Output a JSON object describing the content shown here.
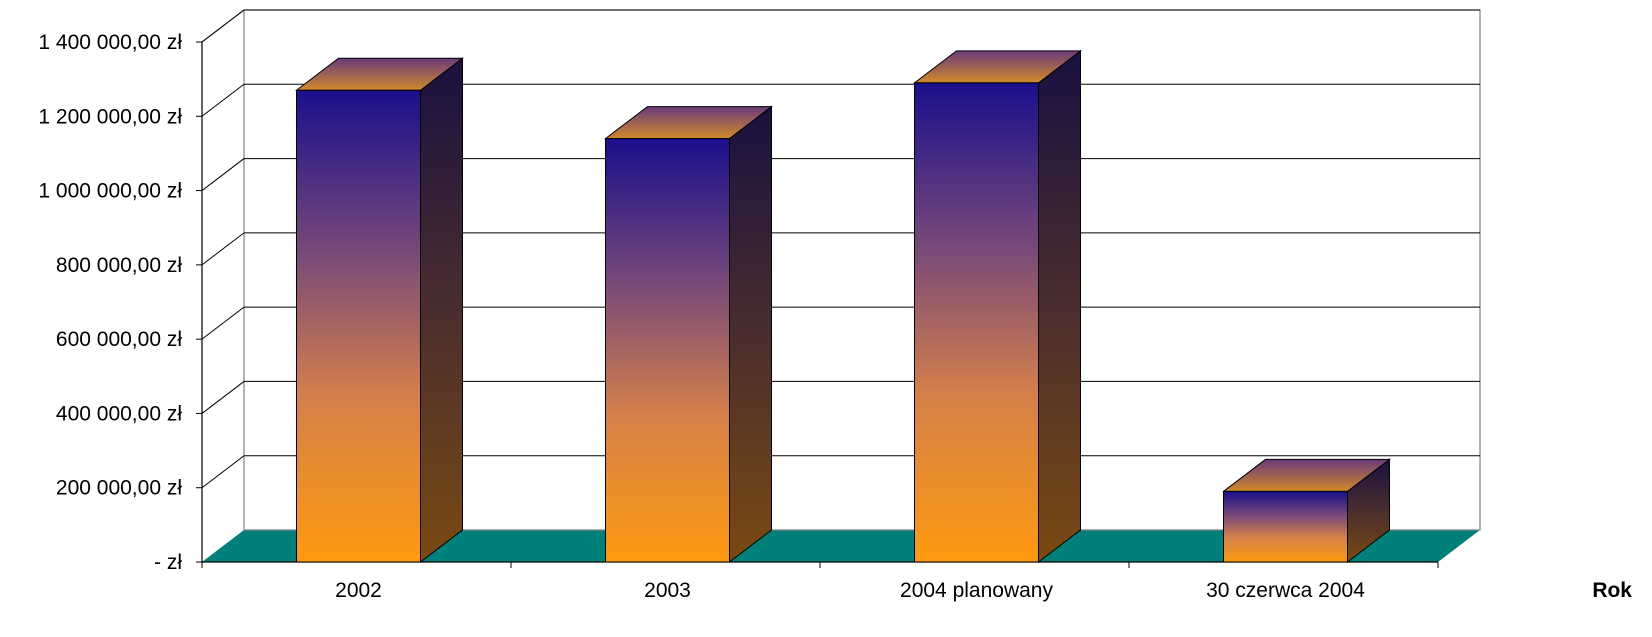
{
  "chart_data": {
    "type": "bar",
    "style": "3d-column",
    "categories": [
      "2002",
      "2003",
      "2004 planowany",
      "30 czerwca 2004"
    ],
    "values": [
      1270000,
      1140000,
      1290000,
      190000
    ],
    "ylim": [
      0,
      1400000
    ],
    "ytick_values": [
      0,
      200000,
      400000,
      600000,
      800000,
      1000000,
      1200000,
      1400000
    ],
    "ytick_labels": [
      "-    zł",
      "200 000,00 zł",
      "400 000,00 zł",
      "600 000,00 zł",
      "800 000,00 zł",
      "1 000 000,00 zł",
      "1 200 000,00 zł",
      "1 400 000,00 zł"
    ],
    "xlabel": "Rok",
    "grid": true,
    "legend": "none",
    "colors": {
      "bar_top": "#1a0f8c",
      "bar_bottom": "#ff9a0f",
      "bar_side_top": "#1a1040",
      "bar_side_bottom": "#7a4a12",
      "cap": "#c4782a",
      "floor": "#00807a",
      "gridline": "#000000"
    }
  }
}
